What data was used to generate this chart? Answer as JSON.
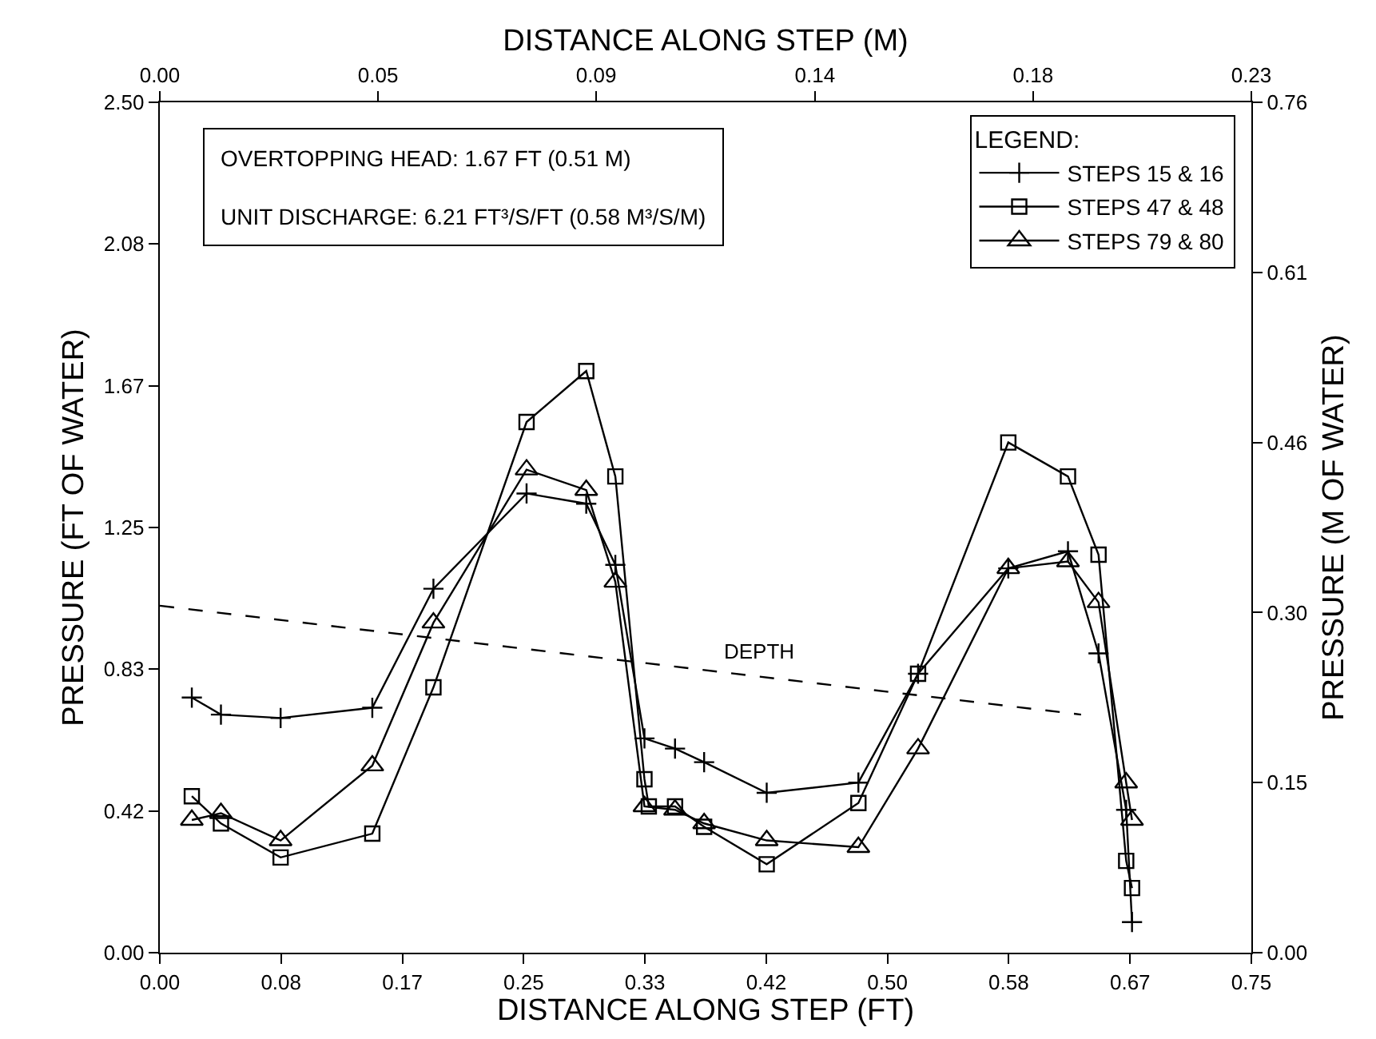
{
  "chart_data": {
    "type": "line",
    "xlabel": "DISTANCE ALONG STEP (FT)",
    "ylabel": "PRESSURE (FT OF WATER)",
    "y2label": "PRESSURE (M OF WATER)",
    "x2label": "DISTANCE ALONG STEP (M)",
    "legend_title": "LEGEND:",
    "annotations": [
      "OVERTOPPING HEAD: 1.67 FT (0.51 M)",
      "UNIT DISCHARGE: 6.21 FT³/S/FT (0.58 M³/S/M)"
    ],
    "xlim": [
      0,
      0.75
    ],
    "xticks": [
      {
        "value": 0,
        "label": "0.00"
      },
      {
        "value": 0.0833,
        "label": "0.08"
      },
      {
        "value": 0.1667,
        "label": "0.17"
      },
      {
        "value": 0.25,
        "label": "0.25"
      },
      {
        "value": 0.3333,
        "label": "0.33"
      },
      {
        "value": 0.4167,
        "label": "0.42"
      },
      {
        "value": 0.5,
        "label": "0.50"
      },
      {
        "value": 0.5833,
        "label": "0.58"
      },
      {
        "value": 0.6667,
        "label": "0.67"
      },
      {
        "value": 0.75,
        "label": "0.75"
      }
    ],
    "ylim": [
      0,
      2.5
    ],
    "yticks": [
      {
        "value": 0,
        "label": "0.00"
      },
      {
        "value": 0.4167,
        "label": "0.42"
      },
      {
        "value": 0.8333,
        "label": "0.83"
      },
      {
        "value": 1.25,
        "label": "1.25"
      },
      {
        "value": 1.6667,
        "label": "1.67"
      },
      {
        "value": 2.0833,
        "label": "2.08"
      },
      {
        "value": 2.5,
        "label": "2.50"
      }
    ],
    "y2lim": [
      0,
      0.762
    ],
    "y2ticks": [
      {
        "value": 0,
        "label": "0.00"
      },
      {
        "value": 0.1524,
        "label": "0.15"
      },
      {
        "value": 0.3048,
        "label": "0.30"
      },
      {
        "value": 0.4572,
        "label": "0.46"
      },
      {
        "value": 0.6096,
        "label": "0.61"
      },
      {
        "value": 0.762,
        "label": "0.76"
      }
    ],
    "x2lim": [
      0,
      0.2286
    ],
    "x2ticks": [
      {
        "value": 0,
        "label": "0.00"
      },
      {
        "value": 0.0457,
        "label": "0.05"
      },
      {
        "value": 0.0914,
        "label": "0.09"
      },
      {
        "value": 0.1372,
        "label": "0.14"
      },
      {
        "value": 0.1829,
        "label": "0.18"
      },
      {
        "value": 0.2286,
        "label": "0.23"
      }
    ],
    "legend": "top right",
    "grid": false,
    "series": [
      {
        "name": "STEPS 15 & 16",
        "color": "#000000",
        "marker": "cross",
        "x": [
          0.022,
          0.042,
          0.083,
          0.146,
          0.188,
          0.252,
          0.293,
          0.313,
          0.333,
          0.354,
          0.374,
          0.417,
          0.48,
          0.521,
          0.583,
          0.624,
          0.645,
          0.664,
          0.668
        ],
        "values": [
          0.75,
          0.7,
          0.69,
          0.72,
          1.07,
          1.35,
          1.32,
          1.14,
          0.63,
          0.6,
          0.56,
          0.47,
          0.5,
          0.82,
          1.13,
          1.18,
          0.88,
          0.42,
          0.09
        ]
      },
      {
        "name": "STEPS 47 & 48",
        "color": "#000000",
        "marker": "square",
        "x": [
          0.022,
          0.042,
          0.083,
          0.146,
          0.188,
          0.252,
          0.293,
          0.313,
          0.333,
          0.336,
          0.354,
          0.374,
          0.417,
          0.48,
          0.521,
          0.583,
          0.624,
          0.645,
          0.664,
          0.668
        ],
        "values": [
          0.46,
          0.38,
          0.28,
          0.35,
          0.78,
          1.56,
          1.71,
          1.4,
          0.51,
          0.43,
          0.43,
          0.37,
          0.26,
          0.44,
          0.82,
          1.5,
          1.4,
          1.17,
          0.27,
          0.19
        ]
      },
      {
        "name": "STEPS 79 & 80",
        "color": "#000000",
        "marker": "triangle",
        "x": [
          0.022,
          0.042,
          0.083,
          0.146,
          0.188,
          0.252,
          0.293,
          0.313,
          0.333,
          0.354,
          0.374,
          0.417,
          0.48,
          0.521,
          0.583,
          0.624,
          0.645,
          0.664,
          0.668
        ],
        "values": [
          0.39,
          0.41,
          0.33,
          0.55,
          0.97,
          1.42,
          1.36,
          1.09,
          0.43,
          0.42,
          0.38,
          0.33,
          0.31,
          0.6,
          1.13,
          1.15,
          1.03,
          0.5,
          0.39
        ]
      },
      {
        "name": "DEPTH",
        "color": "#000000",
        "marker": "none",
        "line_style": "dashed",
        "x": [
          0,
          0.633
        ],
        "values": [
          1.02,
          0.7
        ]
      }
    ]
  }
}
